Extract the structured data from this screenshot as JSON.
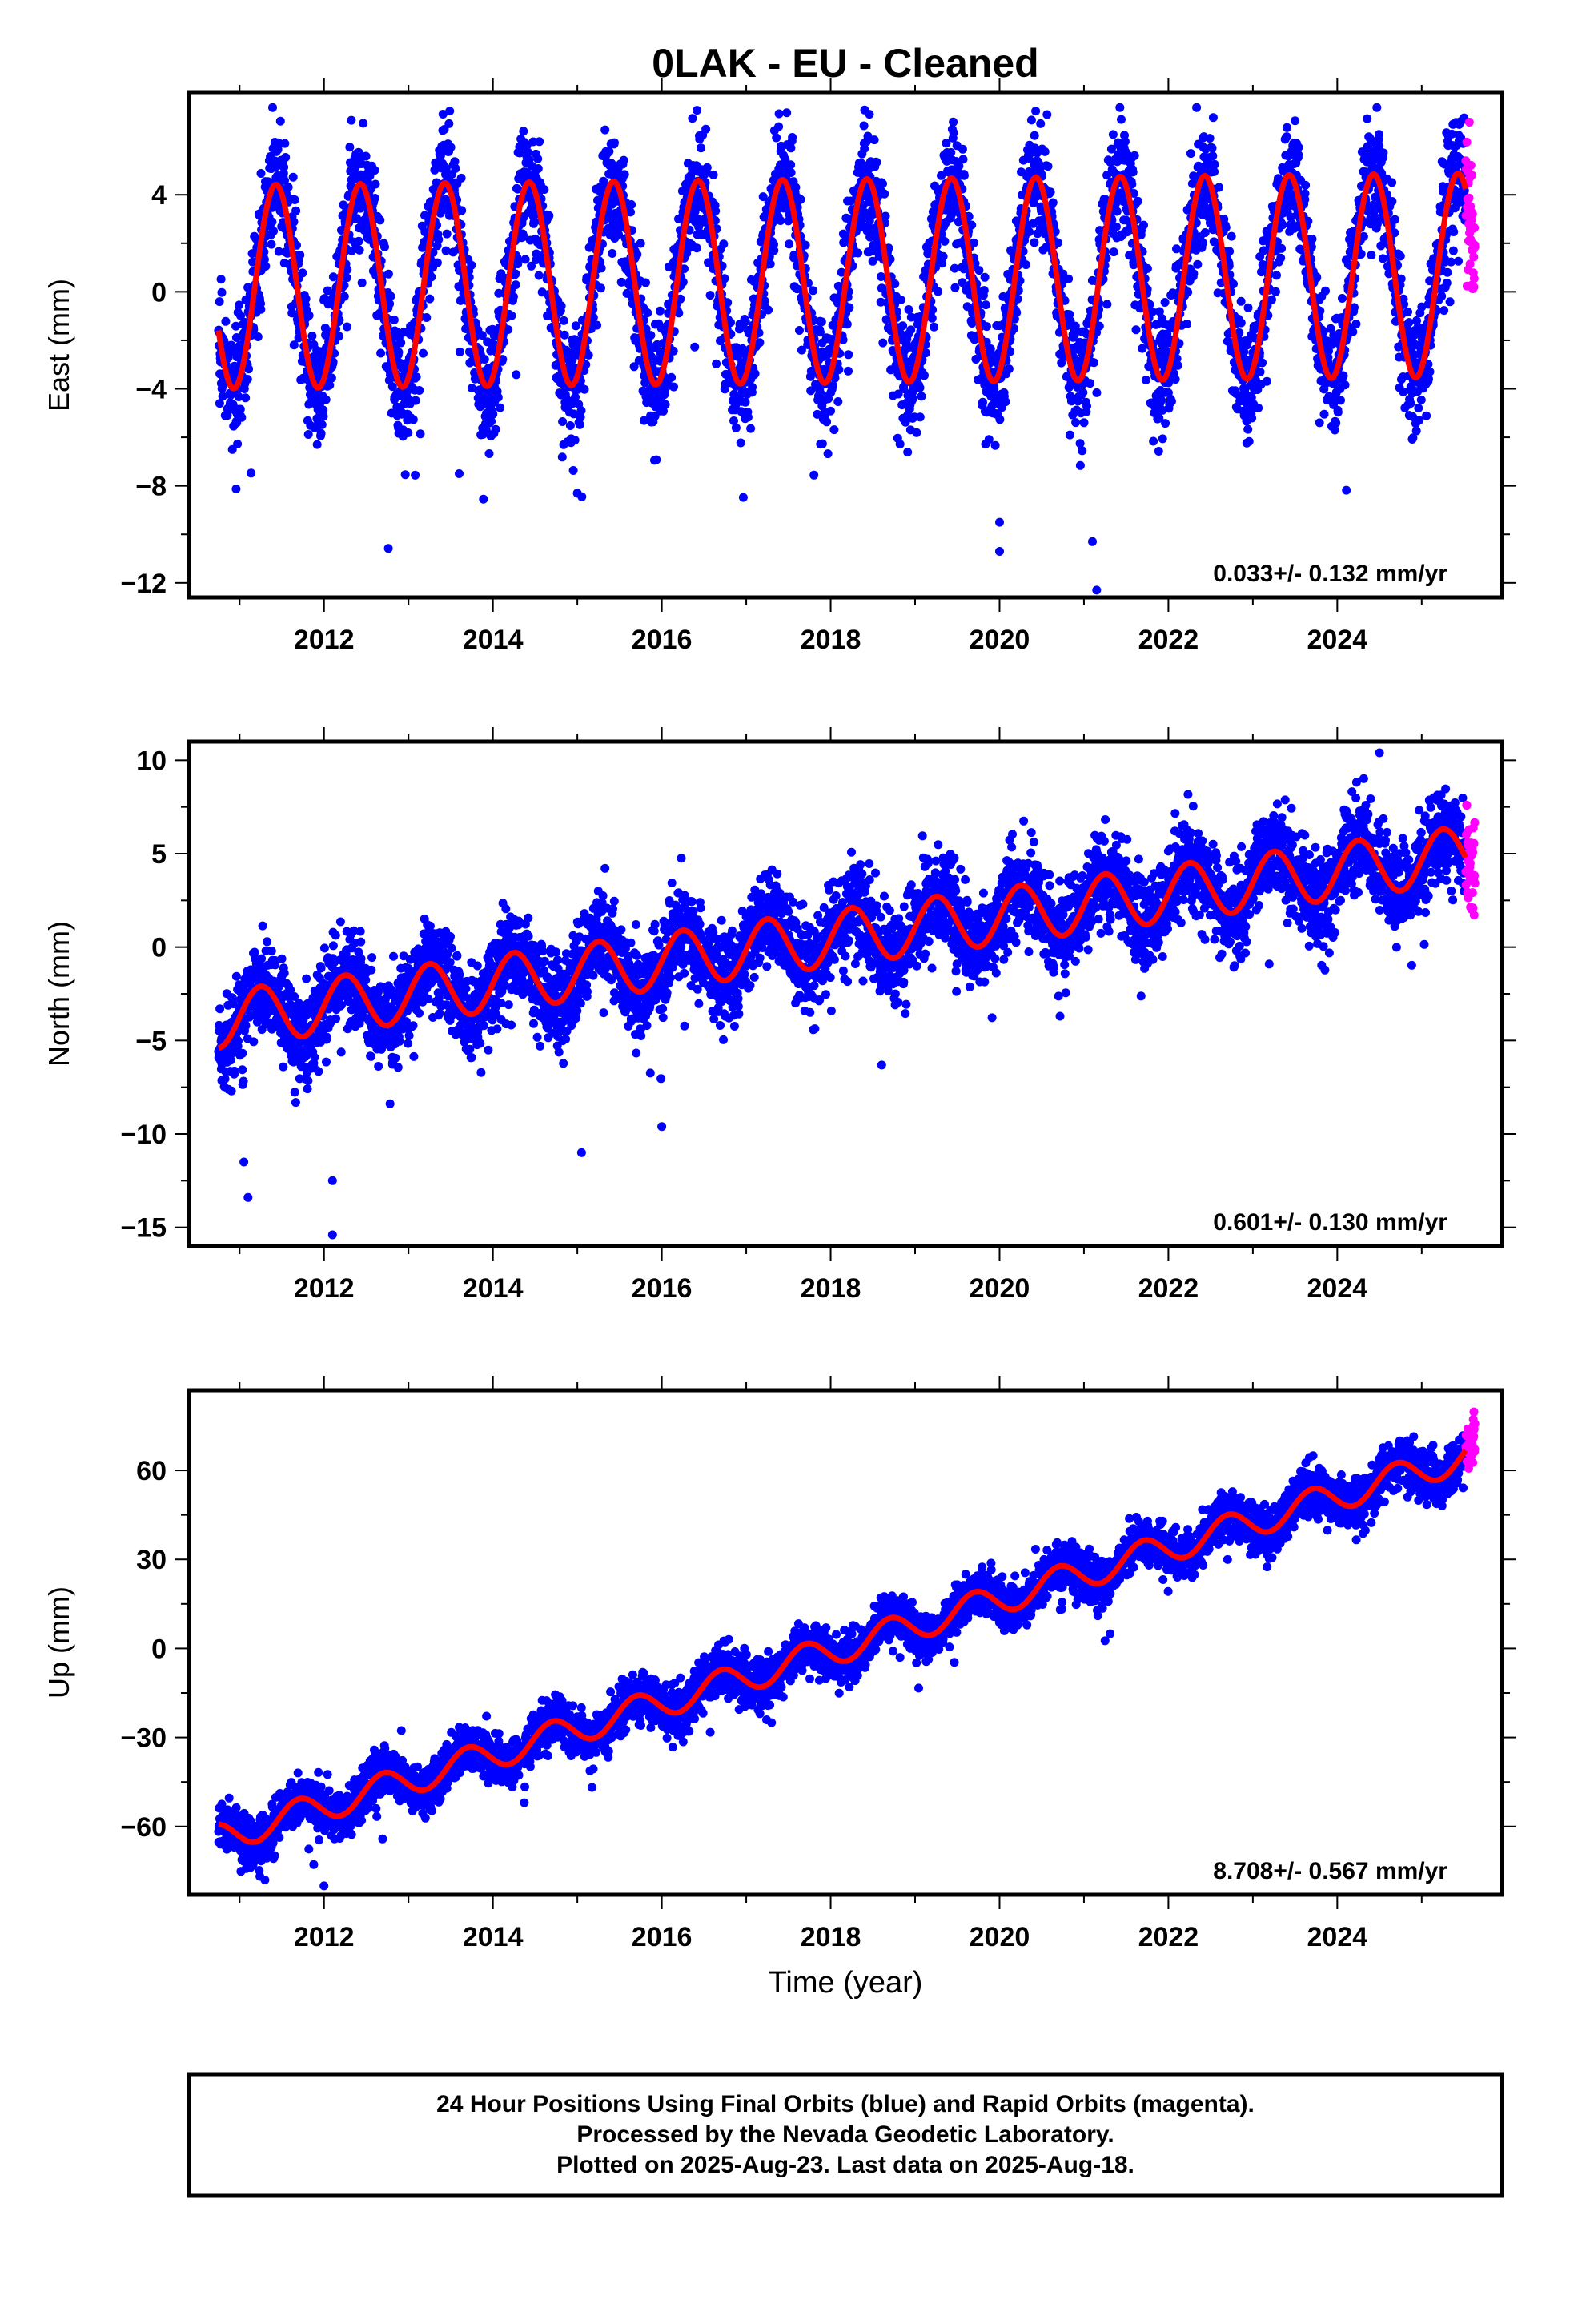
{
  "title": "0LAK  - EU - Cleaned",
  "xlabel": "Time (year)",
  "footer": {
    "line1": "24 Hour Positions Using Final Orbits (blue) and Rapid Orbits (magenta).",
    "line2": "Processed by the Nevada Geodetic Laboratory.",
    "line3": "Plotted on 2025-Aug-23. Last data on 2025-Aug-18."
  },
  "colors": {
    "final_orbits": "#0000ff",
    "rapid_orbits": "#ff00ff",
    "model_fit": "#ff0000",
    "frame": "#000000"
  },
  "chart_data": [
    {
      "type": "scatter",
      "component": "east",
      "ylabel": "East (mm)",
      "rate_label": "0.033+/- 0.132 mm/yr",
      "xlim": [
        2010.4,
        2025.95
      ],
      "ylim": [
        -12.6,
        8.2
      ],
      "x_ticks": [
        2012,
        2014,
        2016,
        2018,
        2020,
        2022,
        2024
      ],
      "y_ticks": [
        -12,
        -8,
        -4,
        0,
        4
      ],
      "grid": false,
      "data_start": 2010.75,
      "final_end": 2025.52,
      "data_end": 2025.63,
      "model": {
        "offset": 0.2,
        "trend_mm_per_yr": 0.033,
        "annual_amplitude_mm": 4.2,
        "annual_phase_years": 0.18
      },
      "scatter_sd_mm": 1.2,
      "approx_spread_mm": [
        -12.3,
        7.6
      ],
      "outliers": [
        [
          2020.0,
          -10.7
        ],
        [
          2020.0,
          -9.5
        ],
        [
          2021.1,
          -10.3
        ],
        [
          2021.15,
          -12.3
        ],
        [
          2015.0,
          -8.3
        ],
        [
          2013.6,
          -7.5
        ]
      ]
    },
    {
      "type": "scatter",
      "component": "north",
      "ylabel": "North (mm)",
      "rate_label": "0.601+/- 0.130 mm/yr",
      "xlim": [
        2010.4,
        2025.95
      ],
      "ylim": [
        -16.0,
        11.0
      ],
      "x_ticks": [
        2012,
        2014,
        2016,
        2018,
        2020,
        2022,
        2024
      ],
      "y_ticks": [
        -15,
        -10,
        -5,
        0,
        5,
        10
      ],
      "grid": false,
      "data_start": 2010.75,
      "final_end": 2025.52,
      "data_end": 2025.63,
      "model": {
        "offset": -3.9,
        "trend_mm_per_yr": 0.601,
        "annual_amplitude_mm": 1.5,
        "annual_phase_years": 0.0
      },
      "scatter_sd_mm": 1.2,
      "approx_spread_mm": [
        -15.4,
        10.4
      ],
      "outliers": [
        [
          2011.1,
          -13.4
        ],
        [
          2011.05,
          -11.5
        ],
        [
          2012.1,
          -15.4
        ],
        [
          2012.1,
          -12.5
        ],
        [
          2015.05,
          -11.0
        ],
        [
          2016.0,
          -9.6
        ],
        [
          2024.5,
          10.4
        ]
      ]
    },
    {
      "type": "scatter",
      "component": "up",
      "ylabel": "Up (mm)",
      "rate_label": "8.708+/- 0.567 mm/yr",
      "xlim": [
        2010.4,
        2025.95
      ],
      "ylim": [
        -83.0,
        87.0
      ],
      "x_ticks": [
        2012,
        2014,
        2016,
        2018,
        2020,
        2022,
        2024
      ],
      "y_ticks": [
        -60,
        -30,
        0,
        30,
        60
      ],
      "grid": false,
      "data_start": 2010.75,
      "final_end": 2025.52,
      "data_end": 2025.63,
      "model": {
        "offset": -64.0,
        "trend_mm_per_yr": 8.708,
        "annual_amplitude_mm": 5.0,
        "annual_phase_years": 0.45
      },
      "scatter_sd_mm": 4.0,
      "approx_spread_mm": [
        -80.0,
        86.0
      ],
      "outliers": [
        [
          2012.0,
          -80.0
        ],
        [
          2011.3,
          -78.0
        ],
        [
          2017.3,
          -25.0
        ]
      ]
    }
  ]
}
